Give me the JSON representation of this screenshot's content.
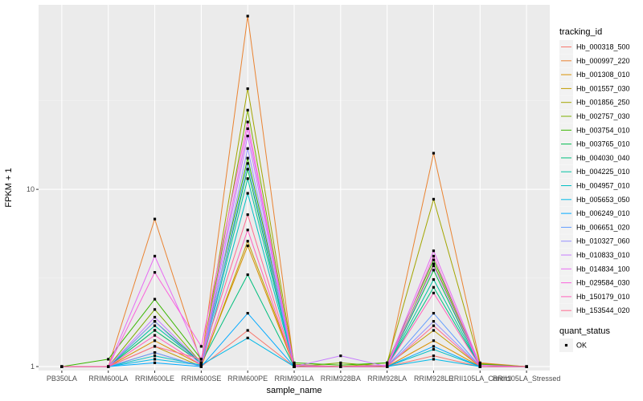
{
  "chart_data": {
    "type": "line",
    "xlabel": "sample_name",
    "ylabel": "FPKM + 1",
    "y_scale": "log10",
    "ylim": [
      0.95,
      110
    ],
    "y_ticks": [
      1,
      10
    ],
    "y_tick_labels": [
      "1",
      "10"
    ],
    "grid": true,
    "legend_position": "right",
    "categories": [
      "PB350LA",
      "RRIM600LA",
      "RRIM600LE",
      "RRIM600SE",
      "RRIM600PE",
      "RRIM901LA",
      "RRIM928BA",
      "RRIM928LA",
      "RRIM928LE",
      "RRII105LA_Control",
      "RRII105LA_Stressed"
    ],
    "legend": {
      "title": "tracking_id",
      "entries": [
        "Hb_000318_500",
        "Hb_000997_220",
        "Hb_001308_010",
        "Hb_001557_030",
        "Hb_001856_250",
        "Hb_002757_030",
        "Hb_003754_010",
        "Hb_003765_010",
        "Hb_004030_040",
        "Hb_004225_010",
        "Hb_004957_010",
        "Hb_005653_050",
        "Hb_006249_010",
        "Hb_006651_020",
        "Hb_010327_060",
        "Hb_010833_010",
        "Hb_014834_100",
        "Hb_029584_030",
        "Hb_150179_010",
        "Hb_153544_020"
      ]
    },
    "legend2": {
      "title": "quant_status",
      "entries": [
        "OK"
      ]
    },
    "series": [
      {
        "name": "Hb_000318_500",
        "color": "#F8766D",
        "values": [
          1,
          1,
          1.2,
          1,
          1.6,
          1,
          1,
          1,
          1.15,
          1,
          1
        ]
      },
      {
        "name": "Hb_000997_220",
        "color": "#EA8331",
        "values": [
          1,
          1,
          6.8,
          1.05,
          95,
          1,
          1,
          1,
          16,
          1.05,
          1
        ]
      },
      {
        "name": "Hb_001308_010",
        "color": "#D89000",
        "values": [
          1,
          1,
          1.4,
          1.02,
          4.8,
          1,
          1,
          1,
          1.4,
          1,
          1
        ]
      },
      {
        "name": "Hb_001557_030",
        "color": "#C09B00",
        "values": [
          1,
          1,
          1.3,
          1,
          5.1,
          1.02,
          1,
          1.02,
          1.6,
          1,
          1
        ]
      },
      {
        "name": "Hb_001856_250",
        "color": "#A3A500",
        "values": [
          1,
          1,
          1.6,
          1.05,
          37,
          1.03,
          1,
          1.05,
          8.8,
          1.04,
          1
        ]
      },
      {
        "name": "Hb_002757_030",
        "color": "#7CAE00",
        "values": [
          1,
          1,
          2.1,
          1.05,
          28,
          1,
          1.05,
          1,
          3.8,
          1.02,
          1
        ]
      },
      {
        "name": "Hb_003754_010",
        "color": "#39B600",
        "values": [
          1,
          1.1,
          2.4,
          1.1,
          15,
          1.05,
          1.02,
          1.05,
          4.0,
          1.03,
          1
        ]
      },
      {
        "name": "Hb_003765_010",
        "color": "#00BB4E",
        "values": [
          1,
          1,
          1.8,
          1.05,
          13,
          1,
          1,
          1,
          3.5,
          1,
          1
        ]
      },
      {
        "name": "Hb_004030_040",
        "color": "#00BF7D",
        "values": [
          1,
          1,
          1.6,
          1.05,
          3.3,
          1,
          1,
          1,
          2.8,
          1,
          1
        ]
      },
      {
        "name": "Hb_004225_010",
        "color": "#00C1A3",
        "values": [
          1,
          1,
          1.7,
          1.05,
          11.5,
          1,
          1,
          1,
          3.1,
          1,
          1
        ]
      },
      {
        "name": "Hb_004957_010",
        "color": "#00BFC4",
        "values": [
          1,
          1,
          1.15,
          1.02,
          9.5,
          1,
          1,
          1,
          1.25,
          1,
          1
        ]
      },
      {
        "name": "Hb_005653_050",
        "color": "#00B8E7",
        "values": [
          1,
          1,
          1.1,
          1.02,
          1.45,
          1,
          1,
          1,
          1.1,
          1,
          1
        ]
      },
      {
        "name": "Hb_006249_010",
        "color": "#00A9FF",
        "values": [
          1,
          1,
          1.05,
          1,
          2.0,
          1,
          1,
          1,
          1.3,
          1,
          1
        ]
      },
      {
        "name": "Hb_006651_020",
        "color": "#619CFF",
        "values": [
          1,
          1,
          1.2,
          1,
          14,
          1,
          1,
          1,
          2.0,
          1,
          1
        ]
      },
      {
        "name": "Hb_010327_060",
        "color": "#9590FF",
        "values": [
          1,
          1,
          1.8,
          1.02,
          17,
          1,
          1,
          1,
          1.8,
          1,
          1
        ]
      },
      {
        "name": "Hb_010833_010",
        "color": "#C77CFF",
        "values": [
          1,
          1,
          1.9,
          1.05,
          20,
          1,
          1.15,
          1,
          3.7,
          1,
          1
        ]
      },
      {
        "name": "Hb_014834_100",
        "color": "#E76BF3",
        "values": [
          1,
          1,
          4.2,
          1.1,
          22,
          1.02,
          1,
          1.02,
          4.5,
          1.02,
          1
        ]
      },
      {
        "name": "Hb_029584_030",
        "color": "#FA62DB",
        "values": [
          1,
          1,
          3.4,
          1.3,
          24,
          1,
          1,
          1,
          4.2,
          1,
          1
        ]
      },
      {
        "name": "Hb_150179_010",
        "color": "#FF62BC",
        "values": [
          1,
          1,
          1.5,
          1.02,
          5.9,
          1,
          1,
          1,
          2.6,
          1,
          1
        ]
      },
      {
        "name": "Hb_153544_020",
        "color": "#FF6C91",
        "values": [
          1,
          1,
          1.3,
          1.1,
          7.2,
          1,
          1,
          1,
          1.7,
          1,
          1
        ]
      }
    ]
  }
}
